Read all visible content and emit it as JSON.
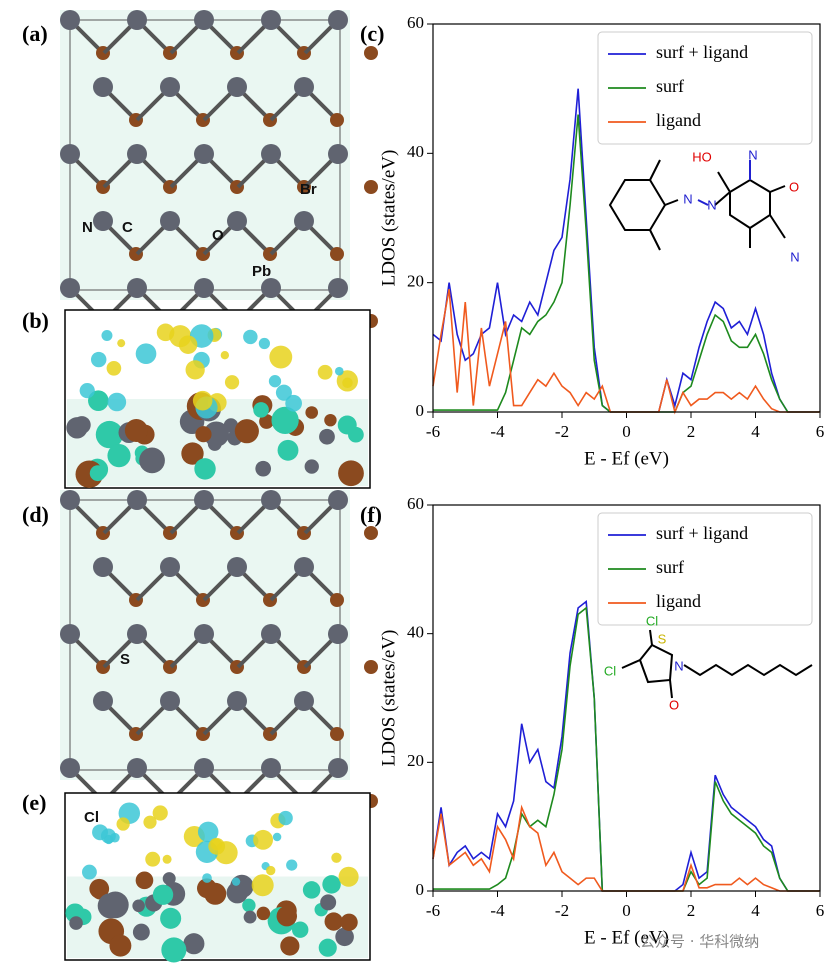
{
  "panels": [
    {
      "label": "(a)",
      "atoms": [
        "N",
        "C",
        "O",
        "Br",
        "Pb"
      ]
    },
    {
      "label": "(b)"
    },
    {
      "label": "(d)",
      "atoms": [
        "S"
      ]
    },
    {
      "label": "(e)",
      "atoms": [
        "Cl"
      ]
    }
  ],
  "watermark": "公众号 · 华科微纳",
  "chart_data": [
    {
      "type": "line",
      "panel_label": "(c)",
      "x_label": "E - Ef (eV)",
      "y_label": "LDOS (states/eV)",
      "xlim": [
        -6,
        6
      ],
      "ylim": [
        0,
        60
      ],
      "xticks": [
        -6,
        -4,
        -2,
        0,
        2,
        4,
        6
      ],
      "yticks": [
        0,
        20,
        40,
        60
      ],
      "legend": "upper right",
      "inset_labels": [
        "HO",
        "N",
        "O",
        "N",
        "N",
        "N"
      ],
      "x": [
        -6,
        -5.75,
        -5.5,
        -5.25,
        -5,
        -4.75,
        -4.5,
        -4.25,
        -4,
        -3.75,
        -3.5,
        -3.25,
        -3,
        -2.75,
        -2.5,
        -2.25,
        -2,
        -1.75,
        -1.5,
        -1.25,
        -1,
        -0.75,
        -0.5,
        -0.25,
        0,
        0.25,
        0.5,
        0.75,
        1,
        1.25,
        1.5,
        1.75,
        2,
        2.25,
        2.5,
        2.75,
        3,
        3.25,
        3.5,
        3.75,
        4,
        4.25,
        4.5,
        4.75,
        5,
        5.25,
        5.5,
        5.75,
        6
      ],
      "series": [
        {
          "name": "surf + ligand",
          "color": "#1f1fd6",
          "values": [
            12,
            11,
            20,
            12,
            8,
            9,
            12,
            13,
            20,
            12,
            15,
            14,
            17,
            15,
            20,
            25,
            27,
            36,
            50,
            30,
            10,
            1,
            0,
            0,
            0,
            0,
            0,
            0,
            0,
            5,
            1,
            6,
            5,
            10,
            14,
            17,
            16,
            13,
            14,
            12,
            16,
            12,
            6,
            2,
            0,
            0,
            0,
            0,
            0
          ]
        },
        {
          "name": "surf",
          "color": "#1e8a1e",
          "values": [
            0.3,
            0.3,
            0.3,
            0.3,
            0.3,
            0.3,
            0.3,
            0.3,
            0.3,
            3,
            8,
            13,
            12,
            14,
            15,
            17,
            20,
            32,
            46,
            28,
            8,
            1,
            0,
            0,
            0,
            0,
            0,
            0,
            0,
            0,
            0,
            3,
            4,
            8,
            12,
            15,
            14,
            11,
            10,
            10,
            12,
            9,
            5,
            2,
            0,
            0,
            0,
            0,
            0
          ]
        },
        {
          "name": "ligand",
          "color": "#f05a1e",
          "values": [
            4,
            12,
            19,
            3,
            17,
            1,
            13,
            4,
            9,
            14,
            1,
            1,
            3,
            5,
            4,
            6,
            4,
            3,
            1,
            3,
            2,
            4,
            0,
            0,
            0,
            0,
            0,
            0,
            0,
            5,
            0,
            3,
            1,
            2,
            2,
            3,
            3,
            2,
            3,
            2,
            4,
            2,
            0.5,
            0,
            0,
            0,
            0,
            0,
            0
          ]
        }
      ]
    },
    {
      "type": "line",
      "panel_label": "(f)",
      "x_label": "E - Ef (eV)",
      "y_label": "LDOS (states/eV)",
      "xlim": [
        -6,
        6
      ],
      "ylim": [
        0,
        60
      ],
      "xticks": [
        -6,
        -4,
        -2,
        0,
        2,
        4,
        6
      ],
      "yticks": [
        0,
        20,
        40,
        60
      ],
      "legend": "upper right",
      "inset_labels": [
        "Cl",
        "S",
        "Cl",
        "N",
        "O"
      ],
      "x": [
        -6,
        -5.75,
        -5.5,
        -5.25,
        -5,
        -4.75,
        -4.5,
        -4.25,
        -4,
        -3.75,
        -3.5,
        -3.25,
        -3,
        -2.75,
        -2.5,
        -2.25,
        -2,
        -1.75,
        -1.5,
        -1.25,
        -1,
        -0.75,
        -0.5,
        -0.25,
        0,
        0.25,
        0.5,
        0.75,
        1,
        1.25,
        1.5,
        1.75,
        2,
        2.25,
        2.5,
        2.75,
        3,
        3.25,
        3.5,
        3.75,
        4,
        4.25,
        4.5,
        4.75,
        5,
        5.25,
        5.5,
        5.75,
        6
      ],
      "series": [
        {
          "name": "surf + ligand",
          "color": "#1f1fd6",
          "values": [
            5,
            13,
            4,
            6,
            7,
            5,
            6,
            5,
            12,
            10,
            14,
            26,
            20,
            22,
            17,
            16,
            24,
            37,
            44,
            45,
            30,
            0,
            0,
            0,
            0,
            0,
            0,
            0,
            0,
            0,
            0,
            1,
            6,
            2,
            3,
            18,
            15,
            13,
            12,
            11,
            10,
            8,
            7,
            2,
            0,
            0,
            0,
            0,
            0
          ]
        },
        {
          "name": "surf",
          "color": "#1e8a1e",
          "values": [
            0.3,
            0.3,
            0.3,
            0.3,
            0.3,
            0.3,
            0.3,
            0.3,
            1,
            2,
            6,
            12,
            10,
            11,
            10,
            15,
            22,
            35,
            43,
            44,
            30,
            0,
            0,
            0,
            0,
            0,
            0,
            0,
            0,
            0,
            0,
            0,
            3,
            1,
            2,
            17,
            14,
            12,
            11,
            10,
            9,
            7,
            6,
            2,
            0,
            0,
            0,
            0,
            0
          ]
        },
        {
          "name": "ligand",
          "color": "#f05a1e",
          "values": [
            5,
            12,
            4,
            5,
            6,
            4,
            5,
            3,
            10,
            8,
            5,
            13,
            10,
            9,
            4,
            6,
            3,
            2,
            1,
            2,
            2,
            0,
            0,
            0,
            0,
            0,
            0,
            0,
            0,
            0,
            0,
            0,
            4,
            0.5,
            0.5,
            1,
            1,
            1,
            2,
            1,
            2,
            1,
            0.5,
            0,
            0,
            0,
            0,
            0,
            0
          ]
        }
      ]
    }
  ]
}
